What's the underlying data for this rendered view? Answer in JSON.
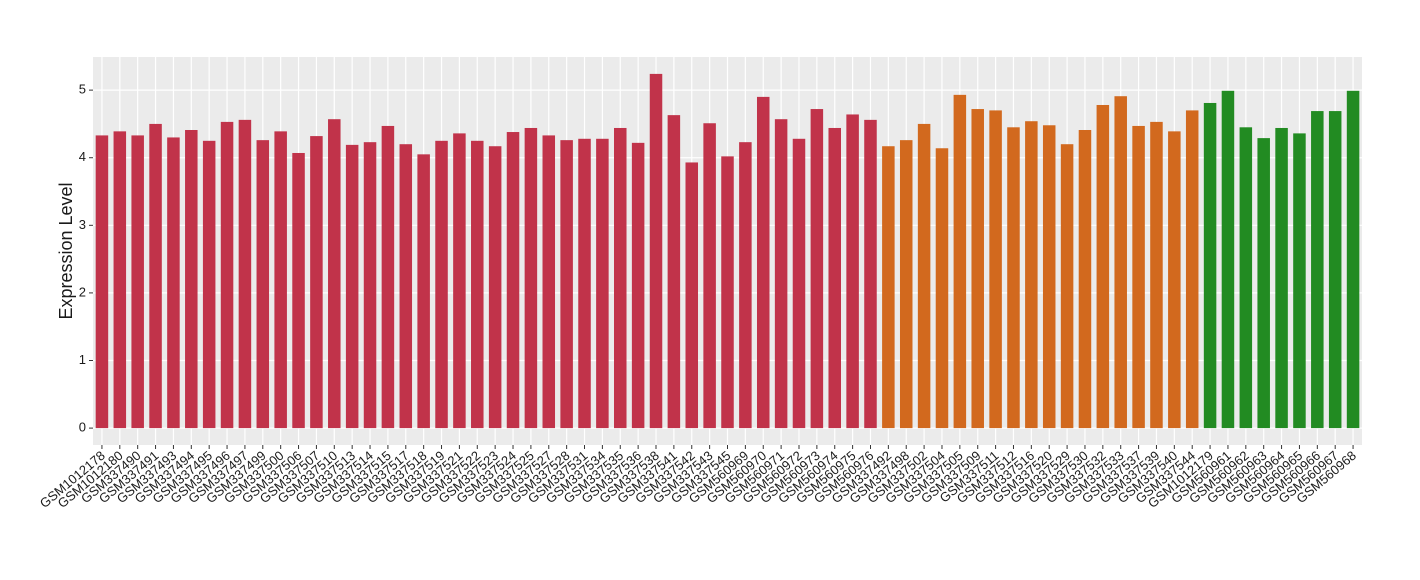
{
  "chart_data": {
    "type": "bar",
    "y_label": "Expression Level",
    "categories": [
      "GSM1012178",
      "GSM1012180",
      "GSM337490",
      "GSM337491",
      "GSM337493",
      "GSM337494",
      "GSM337495",
      "GSM337496",
      "GSM337497",
      "GSM337499",
      "GSM337500",
      "GSM337506",
      "GSM337507",
      "GSM337510",
      "GSM337513",
      "GSM337514",
      "GSM337515",
      "GSM337517",
      "GSM337518",
      "GSM337519",
      "GSM337521",
      "GSM337522",
      "GSM337523",
      "GSM337524",
      "GSM337525",
      "GSM337527",
      "GSM337528",
      "GSM337531",
      "GSM337534",
      "GSM337535",
      "GSM337536",
      "GSM337538",
      "GSM337541",
      "GSM337542",
      "GSM337543",
      "GSM337545",
      "GSM560969",
      "GSM560970",
      "GSM560971",
      "GSM560972",
      "GSM560973",
      "GSM560974",
      "GSM560975",
      "GSM560976",
      "GSM337492",
      "GSM337498",
      "GSM337502",
      "GSM337504",
      "GSM337505",
      "GSM337509",
      "GSM337511",
      "GSM337512",
      "GSM337516",
      "GSM337520",
      "GSM337529",
      "GSM337530",
      "GSM337532",
      "GSM337533",
      "GSM337537",
      "GSM337539",
      "GSM337540",
      "GSM337544",
      "GSM1012179",
      "GSM560961",
      "GSM560962",
      "GSM560963",
      "GSM560964",
      "GSM560965",
      "GSM560966",
      "GSM560967",
      "GSM560968"
    ],
    "values": [
      4.33,
      4.39,
      4.33,
      4.5,
      4.3,
      4.41,
      4.25,
      4.53,
      4.56,
      4.26,
      4.39,
      4.07,
      4.32,
      4.57,
      4.19,
      4.23,
      4.47,
      4.2,
      4.05,
      4.25,
      4.36,
      4.25,
      4.17,
      4.38,
      4.44,
      4.33,
      4.26,
      4.28,
      4.28,
      4.44,
      4.22,
      5.24,
      4.63,
      3.93,
      4.51,
      4.02,
      4.23,
      4.9,
      4.57,
      4.28,
      4.72,
      4.44,
      4.64,
      4.56,
      4.17,
      4.26,
      4.5,
      4.14,
      4.93,
      4.72,
      4.7,
      4.45,
      4.54,
      4.48,
      4.2,
      4.41,
      4.78,
      4.91,
      4.47,
      4.53,
      4.39,
      4.7,
      4.81,
      4.99,
      4.45,
      4.29,
      4.44,
      4.36,
      4.69,
      4.69,
      4.99
    ],
    "colors": [
      "#c1334a",
      "#c1334a",
      "#c1334a",
      "#c1334a",
      "#c1334a",
      "#c1334a",
      "#c1334a",
      "#c1334a",
      "#c1334a",
      "#c1334a",
      "#c1334a",
      "#c1334a",
      "#c1334a",
      "#c1334a",
      "#c1334a",
      "#c1334a",
      "#c1334a",
      "#c1334a",
      "#c1334a",
      "#c1334a",
      "#c1334a",
      "#c1334a",
      "#c1334a",
      "#c1334a",
      "#c1334a",
      "#c1334a",
      "#c1334a",
      "#c1334a",
      "#c1334a",
      "#c1334a",
      "#c1334a",
      "#c1334a",
      "#c1334a",
      "#c1334a",
      "#c1334a",
      "#c1334a",
      "#c1334a",
      "#c1334a",
      "#c1334a",
      "#c1334a",
      "#c1334a",
      "#c1334a",
      "#c1334a",
      "#c1334a",
      "#d2691e",
      "#d2691e",
      "#d2691e",
      "#d2691e",
      "#d2691e",
      "#d2691e",
      "#d2691e",
      "#d2691e",
      "#d2691e",
      "#d2691e",
      "#d2691e",
      "#d2691e",
      "#d2691e",
      "#d2691e",
      "#d2691e",
      "#d2691e",
      "#d2691e",
      "#d2691e",
      "#228b22",
      "#228b22",
      "#228b22",
      "#228b22",
      "#228b22",
      "#228b22",
      "#228b22",
      "#228b22",
      "#228b22"
    ],
    "ylim": [
      -0.25,
      5.49
    ],
    "yticks": [
      0,
      1,
      2,
      3,
      4,
      5
    ],
    "grid": true
  }
}
